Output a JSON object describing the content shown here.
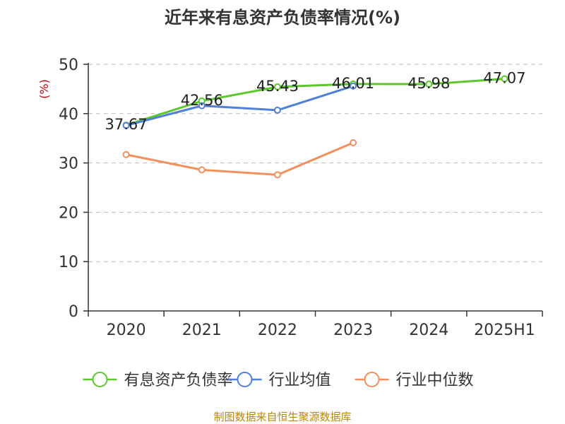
{
  "chart_data": {
    "type": "line",
    "title": "近年来有息资产负债率情况(%)",
    "ylabel": "(%)",
    "categories": [
      "2020",
      "2021",
      "2022",
      "2023",
      "2024",
      "2025H1"
    ],
    "ylim": [
      0,
      50
    ],
    "yticks": [
      0,
      10,
      20,
      30,
      40,
      50
    ],
    "grid": "horizontal-dashed",
    "legend_position": "bottom",
    "series": [
      {
        "name": "有息资产负债率",
        "color": "#5cc72a",
        "values": [
          37.67,
          42.56,
          45.43,
          46.01,
          45.98,
          47.07
        ],
        "labels": [
          "37.67",
          "42.56",
          "45.43",
          "46.01",
          "45.98",
          "47.07"
        ]
      },
      {
        "name": "行业均值",
        "color": "#4f7fd6",
        "values": [
          37.6,
          41.6,
          40.7,
          45.6,
          null,
          null
        ]
      },
      {
        "name": "行业中位数",
        "color": "#f28f5c",
        "values": [
          31.7,
          28.6,
          27.6,
          34.1,
          null,
          null
        ]
      }
    ],
    "source": "制图数据来自恒生聚源数据库"
  }
}
